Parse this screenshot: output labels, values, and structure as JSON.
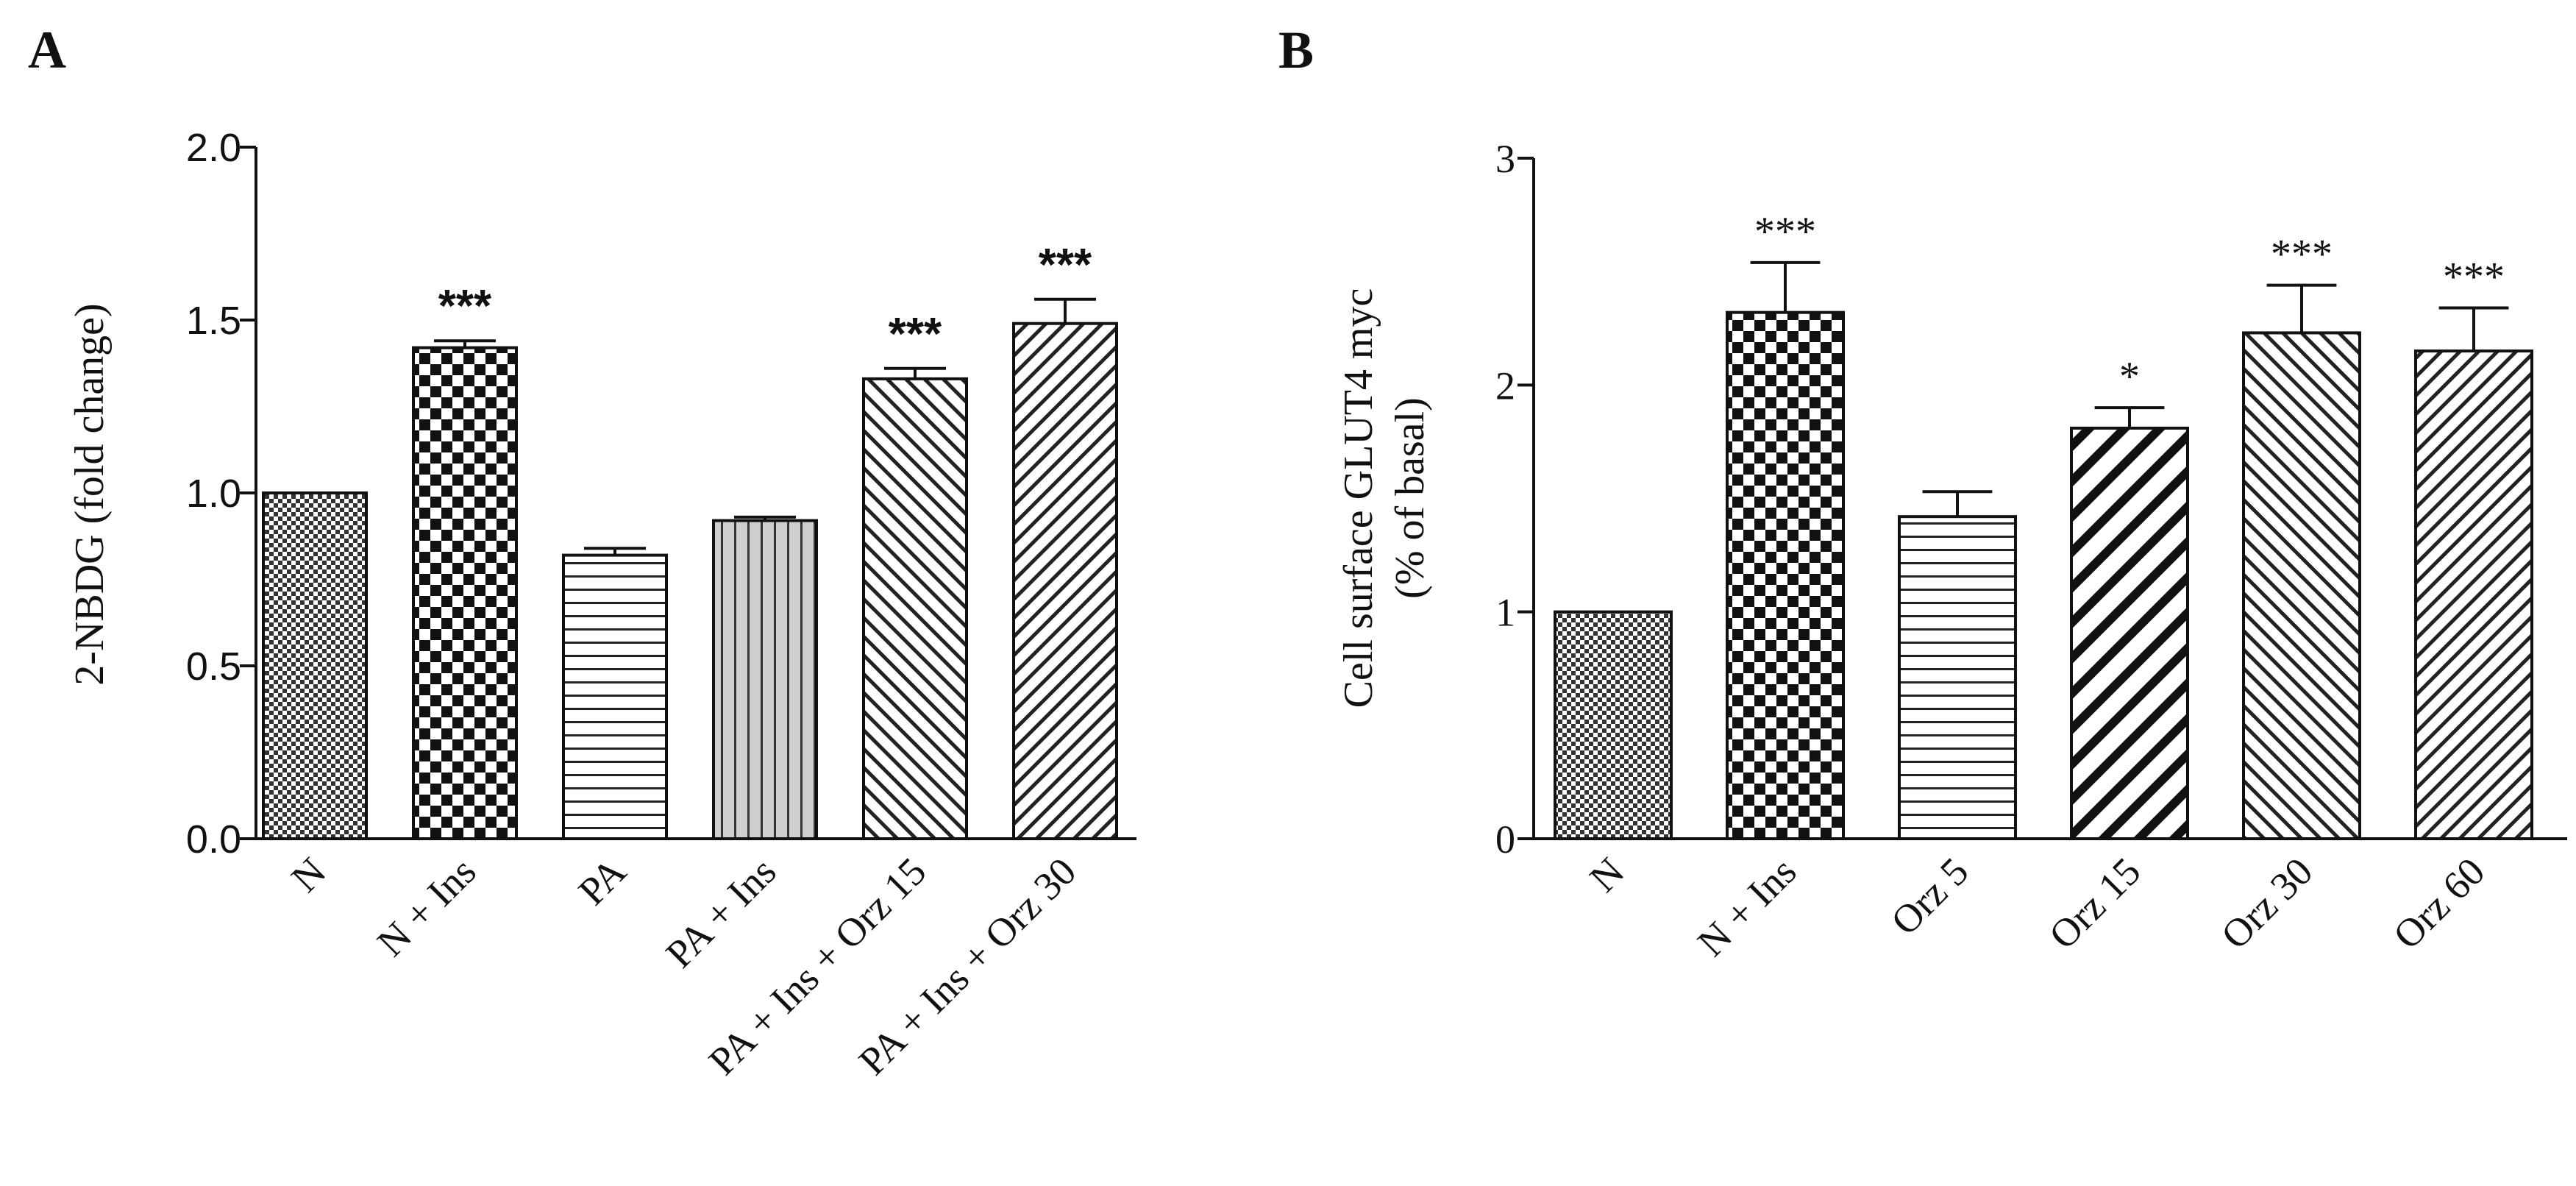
{
  "chart_data": [
    {
      "panel": "A",
      "type": "bar",
      "ylabel": "2-NBDG (fold change)",
      "ylim": [
        0,
        2.0
      ],
      "yticks": [
        "0.0",
        "0.5",
        "1.0",
        "1.5",
        "2.0"
      ],
      "ytick_values": [
        0,
        0.5,
        1.0,
        1.5,
        2.0
      ],
      "categories": [
        "N",
        "N + Ins",
        "PA",
        "PA + Ins",
        "PA + Ins + Orz 15",
        "PA + Ins + Orz 30"
      ],
      "values": [
        1.0,
        1.42,
        0.82,
        0.92,
        1.33,
        1.49
      ],
      "errors": [
        0,
        0.02,
        0.02,
        0.01,
        0.03,
        0.07
      ],
      "significance": [
        "",
        "***",
        "",
        "",
        "***",
        "***"
      ],
      "patterns": [
        "fine-check",
        "coarse-check",
        "horizontal",
        "vertical-gray",
        "diagonal",
        "diagonal-back"
      ]
    },
    {
      "panel": "B",
      "type": "bar",
      "ylabel_lines": [
        "Cell surface GLUT4 myc",
        "(% of basal)"
      ],
      "ylim": [
        0,
        3
      ],
      "yticks": [
        "0",
        "1",
        "2",
        "3"
      ],
      "ytick_values": [
        0,
        1,
        2,
        3
      ],
      "categories": [
        "N",
        "N + Ins",
        "Orz 5",
        "Orz 15",
        "Orz 30",
        "Orz 60"
      ],
      "values": [
        1.0,
        2.32,
        1.42,
        1.81,
        2.23,
        2.15
      ],
      "errors": [
        0,
        0.22,
        0.11,
        0.09,
        0.21,
        0.19
      ],
      "significance": [
        "",
        "***",
        "",
        "*",
        "***",
        "***"
      ],
      "patterns": [
        "fine-check",
        "coarse-check",
        "horizontal",
        "diagonal-thick",
        "diagonal",
        "diagonal-back"
      ]
    }
  ]
}
